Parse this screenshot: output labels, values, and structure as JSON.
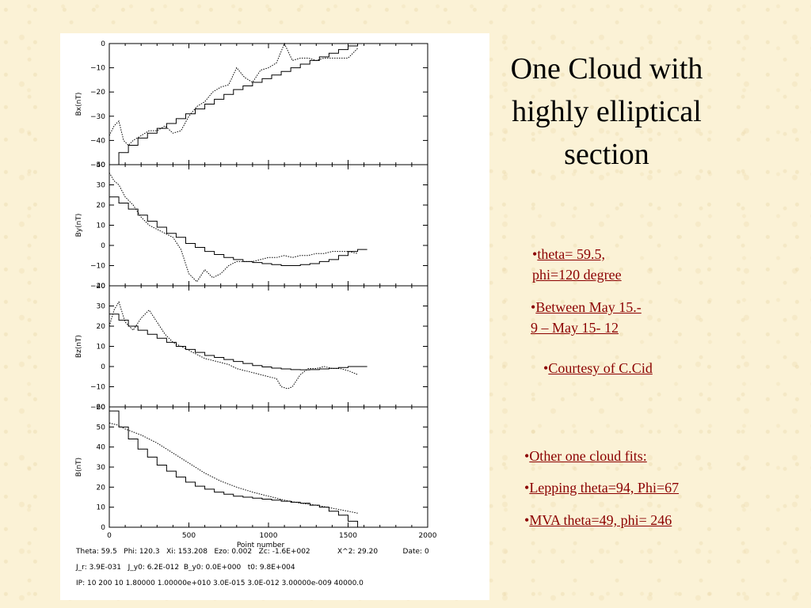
{
  "title": {
    "line1": "One Cloud with",
    "line2": "highly elliptical",
    "line3": "section"
  },
  "bullets": {
    "marker": "•",
    "theta_phi": [
      "theta= 59.5,",
      "phi=120 degree"
    ],
    "between": [
      "Between May 15.-",
      "9 – May 15- 12"
    ],
    "courtesy": "Courtesy of C.Cid",
    "other": "Other  one cloud fits:",
    "lepping": "Lepping  theta=94, Phi=67",
    "mva": "MVA theta=49, phi= 246"
  },
  "figure_info": {
    "line1": "Theta: 59.5   Phi: 120.3   Xi: 153.208   Ezo: 0.002   Zc: -1.6E+002            X^2: 29.20           Date: 0",
    "line2": "J_r: 3.9E-031   J_y0: 6.2E-012  B_y0: 0.0E+000   t0: 9.8E+004",
    "line3": "IP: 10 200 10 1.80000 1.00000e+010 3.0E-015 3.0E-012 3.00000e-009 40000.0"
  },
  "colors": {
    "link": "#8b0000",
    "text": "#000000",
    "background": "#fbf2d6"
  },
  "chart_data": [
    {
      "type": "line",
      "ylabel": "Bx(nT)",
      "xlim": [
        0,
        2000
      ],
      "ylim": [
        -50,
        0
      ],
      "yticks": [
        "0",
        "−10",
        "−20",
        "−30",
        "−40",
        "−50"
      ],
      "ytick_values": [
        0,
        -10,
        -20,
        -30,
        -40,
        -50
      ],
      "series": [
        {
          "style": "dotted",
          "x": [
            0,
            30,
            60,
            90,
            120,
            150,
            200,
            250,
            300,
            350,
            400,
            450,
            500,
            550,
            600,
            650,
            700,
            750,
            800,
            850,
            900,
            950,
            1000,
            1050,
            1100,
            1150,
            1200,
            1250,
            1300,
            1350,
            1400,
            1450,
            1500,
            1560
          ],
          "y": [
            -38,
            -34,
            -32,
            -40,
            -42,
            -40,
            -38,
            -36,
            -36,
            -34,
            -37,
            -36,
            -30,
            -26,
            -24,
            -20,
            -18,
            -17,
            -10,
            -14,
            -16,
            -11,
            -10,
            -8,
            0,
            -7,
            -6,
            -6,
            -7,
            -6,
            -6,
            -6,
            -6,
            -2
          ]
        },
        {
          "style": "step",
          "x": [
            0,
            60,
            120,
            180,
            240,
            300,
            360,
            420,
            480,
            540,
            600,
            660,
            720,
            780,
            840,
            900,
            960,
            1020,
            1080,
            1140,
            1200,
            1260,
            1320,
            1380,
            1440,
            1500,
            1560
          ],
          "y": [
            -50,
            -45,
            -42,
            -39,
            -37,
            -35,
            -33,
            -31,
            -29,
            -27,
            -25,
            -23,
            -21,
            -19,
            -17.5,
            -16,
            -14.5,
            -13,
            -11.5,
            -10,
            -8.5,
            -7,
            -5.5,
            -4,
            -2.5,
            -1,
            0
          ]
        }
      ]
    },
    {
      "type": "line",
      "ylabel": "By(nT)",
      "xlim": [
        0,
        2000
      ],
      "ylim": [
        -20,
        40
      ],
      "yticks": [
        "40",
        "30",
        "20",
        "10",
        "0",
        "−10",
        "−20"
      ],
      "ytick_values": [
        40,
        30,
        20,
        10,
        0,
        -10,
        -20
      ],
      "series": [
        {
          "style": "dotted",
          "x": [
            0,
            30,
            60,
            100,
            150,
            200,
            250,
            300,
            350,
            400,
            450,
            500,
            550,
            600,
            650,
            700,
            750,
            800,
            850,
            900,
            950,
            1000,
            1050,
            1100,
            1150,
            1200,
            1250,
            1300,
            1350,
            1400,
            1450,
            1500,
            1560
          ],
          "y": [
            36,
            32,
            30,
            24,
            20,
            14,
            10,
            8,
            6,
            4,
            -2,
            -14,
            -18,
            -12,
            -16,
            -14,
            -10,
            -8,
            -8,
            -8,
            -7,
            -6,
            -6,
            -5,
            -6,
            -5,
            -5,
            -4,
            -4,
            -3,
            -3,
            -3,
            -4
          ]
        },
        {
          "style": "step",
          "x": [
            0,
            60,
            120,
            180,
            240,
            300,
            360,
            420,
            480,
            540,
            600,
            660,
            720,
            780,
            840,
            900,
            960,
            1020,
            1080,
            1140,
            1200,
            1260,
            1320,
            1380,
            1440,
            1500,
            1560
          ],
          "y": [
            24,
            21,
            18,
            15,
            12,
            9,
            6,
            4,
            1,
            -1,
            -3,
            -4.5,
            -6,
            -7,
            -8,
            -8.5,
            -9,
            -9.5,
            -10,
            -10,
            -9.5,
            -9,
            -8,
            -7,
            -5,
            -3,
            -2
          ]
        }
      ]
    },
    {
      "type": "line",
      "ylabel": "Bz(nT)",
      "xlim": [
        0,
        2000
      ],
      "ylim": [
        -20,
        40
      ],
      "yticks": [
        "40",
        "30",
        "20",
        "10",
        "0",
        "−10",
        "−20"
      ],
      "ytick_values": [
        40,
        30,
        20,
        10,
        0,
        -10,
        -20
      ],
      "series": [
        {
          "style": "dotted",
          "x": [
            0,
            30,
            60,
            100,
            150,
            200,
            250,
            300,
            350,
            400,
            450,
            500,
            550,
            600,
            650,
            700,
            750,
            800,
            850,
            900,
            950,
            1000,
            1050,
            1080,
            1120,
            1150,
            1200,
            1250,
            1300,
            1350,
            1400,
            1450,
            1500,
            1560
          ],
          "y": [
            20,
            28,
            32,
            22,
            18,
            24,
            28,
            22,
            16,
            12,
            10,
            8,
            6,
            4,
            3,
            2,
            1,
            -1,
            -2,
            -3,
            -4,
            -5,
            -6,
            -10,
            -11,
            -10,
            -4,
            -1,
            -1,
            0,
            -1,
            -1,
            -2,
            -4
          ]
        },
        {
          "style": "step",
          "x": [
            0,
            60,
            120,
            180,
            240,
            300,
            360,
            420,
            480,
            540,
            600,
            660,
            720,
            780,
            840,
            900,
            960,
            1020,
            1080,
            1140,
            1200,
            1260,
            1320,
            1380,
            1440,
            1500,
            1560
          ],
          "y": [
            26,
            23,
            20,
            18,
            16,
            14,
            12,
            10,
            8.5,
            7,
            5.5,
            4.5,
            3.5,
            2.5,
            1.5,
            0.5,
            -0.2,
            -0.8,
            -1.2,
            -1.5,
            -1.6,
            -1.5,
            -1.2,
            -0.9,
            -0.5,
            0,
            0
          ]
        }
      ]
    },
    {
      "type": "line",
      "ylabel": "B(nT)",
      "xlabel": "Point number",
      "xlim": [
        0,
        2000
      ],
      "ylim": [
        0,
        60
      ],
      "xticks": [
        "0",
        "500",
        "1000",
        "1500",
        "2000"
      ],
      "xtick_values": [
        0,
        500,
        1000,
        1500,
        2000
      ],
      "yticks": [
        "60",
        "50",
        "40",
        "30",
        "20",
        "10",
        "0"
      ],
      "ytick_values": [
        60,
        50,
        40,
        30,
        20,
        10,
        0
      ],
      "series": [
        {
          "style": "dotted",
          "x": [
            0,
            50,
            100,
            200,
            300,
            400,
            500,
            600,
            700,
            800,
            900,
            1000,
            1100,
            1200,
            1300,
            1400,
            1500,
            1560
          ],
          "y": [
            52,
            51,
            49,
            46,
            42,
            37,
            32,
            27,
            23,
            20,
            17.5,
            15.5,
            13.5,
            12,
            11,
            9.5,
            8,
            7
          ]
        },
        {
          "style": "step",
          "x": [
            0,
            60,
            120,
            180,
            240,
            300,
            360,
            420,
            480,
            540,
            600,
            660,
            720,
            780,
            840,
            900,
            960,
            1020,
            1080,
            1140,
            1200,
            1260,
            1320,
            1380,
            1440,
            1500,
            1560
          ],
          "y": [
            58,
            50,
            44,
            39,
            35,
            31,
            28,
            25,
            22.5,
            20.5,
            19,
            17.5,
            16.5,
            15.5,
            15,
            14.5,
            14,
            13.5,
            13,
            12.5,
            12,
            11,
            10,
            8,
            6,
            3,
            0
          ]
        }
      ]
    }
  ]
}
